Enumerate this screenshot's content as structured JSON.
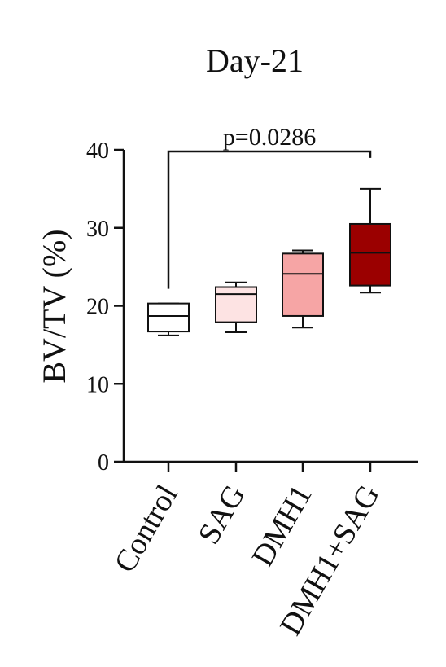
{
  "chart_data": {
    "type": "box",
    "title": "Day-21",
    "ylabel": "BV/TV (%)",
    "xlabel": "",
    "ylim": [
      0,
      40
    ],
    "yticks": [
      "0",
      "10",
      "20",
      "30",
      "40"
    ],
    "grid": false,
    "categories": [
      "Control",
      "SAG",
      "DMH1",
      "DMH1+SAG"
    ],
    "boxes": [
      {
        "category": "Control",
        "min": 16.2,
        "q1": 16.7,
        "median": 18.7,
        "q3": 20.3,
        "max": 20.3,
        "color": "#ffffff"
      },
      {
        "category": "SAG",
        "min": 16.6,
        "q1": 17.9,
        "median": 21.5,
        "q3": 22.4,
        "max": 23.0,
        "color": "#fde3e3"
      },
      {
        "category": "DMH1",
        "min": 17.2,
        "q1": 18.7,
        "median": 24.1,
        "q3": 26.7,
        "max": 27.1,
        "color": "#f6a5a5"
      },
      {
        "category": "DMH1+SAG",
        "min": 21.7,
        "q1": 22.6,
        "median": 26.8,
        "q3": 30.5,
        "max": 35.0,
        "color": "#9b0000"
      }
    ],
    "annotations": [
      {
        "text": "p=0.0286",
        "from": "Control",
        "to": "DMH1+SAG"
      }
    ]
  }
}
